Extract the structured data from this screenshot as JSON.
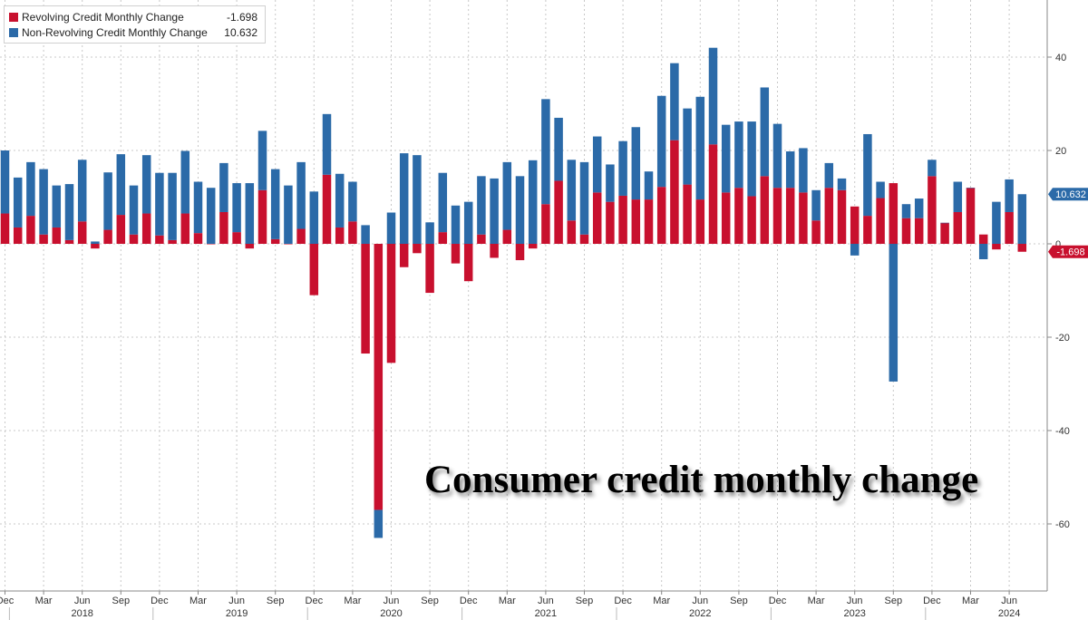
{
  "chart_data": {
    "type": "bar",
    "stacked": true,
    "title": "Consumer credit monthly change",
    "series": [
      {
        "name": "Revolving Credit Monthly Change",
        "last_value": "-1.698",
        "color": "#c8102e",
        "values": [
          6.5,
          3.5,
          6,
          2,
          3.5,
          0.8,
          4.8,
          -1,
          3,
          6.2,
          2,
          6.5,
          1.8,
          0.8,
          6.5,
          2.3,
          0,
          6.8,
          2.5,
          -1,
          11.5,
          1,
          0,
          3.2,
          -11,
          14.8,
          3.5,
          4.8,
          -23.5,
          -57,
          -25.5,
          -5,
          -2,
          -10.5,
          2.5,
          -4.2,
          -8,
          2,
          -3,
          3,
          -3.5,
          -1,
          8.5,
          13.5,
          5,
          2,
          11,
          9,
          10.3,
          9.5,
          9.5,
          12.2,
          22.2,
          12.7,
          9.5,
          21.3,
          11,
          12,
          10.2,
          14.5,
          12,
          12,
          11,
          5,
          12,
          11.5,
          8,
          6,
          9.8,
          13,
          5.5,
          5.5,
          14.5,
          4.5,
          6.8,
          12,
          2,
          -1.2,
          6.8,
          -1.698
        ]
      },
      {
        "name": "Non-Revolving Credit Monthly Change",
        "last_value": "10.632",
        "color": "#2b6aa8",
        "values": [
          13.5,
          10.7,
          11.5,
          14,
          9,
          12,
          13.2,
          0.5,
          12.3,
          13,
          10.5,
          12.5,
          13.4,
          14.4,
          13.4,
          11,
          12,
          10.5,
          10.5,
          13,
          12.7,
          15,
          12.5,
          14.3,
          11.2,
          13,
          11.5,
          8.5,
          4,
          -6,
          6.7,
          19.4,
          19,
          4.6,
          12.7,
          8.2,
          9,
          12.5,
          14,
          14.5,
          14.5,
          17.9,
          22.5,
          13.5,
          13,
          15.5,
          12,
          8,
          11.7,
          15.5,
          6,
          19.5,
          16.5,
          16.3,
          22,
          20.7,
          14.5,
          14.2,
          16,
          19,
          13.7,
          7.8,
          9.5,
          6.5,
          5.3,
          2.5,
          -2.5,
          17.5,
          3.5,
          -29.5,
          3,
          4.2,
          3.5,
          0,
          6.5,
          0,
          -3.3,
          9,
          7,
          10.632
        ]
      }
    ],
    "x_tick_labels": [
      "Dec",
      "Mar",
      "Jun",
      "Sep",
      "Dec",
      "Mar",
      "Jun",
      "Sep",
      "Dec",
      "Mar",
      "Jun",
      "Sep",
      "Dec",
      "Mar",
      "Jun",
      "Sep",
      "Dec",
      "Mar",
      "Jun",
      "Sep",
      "Dec",
      "Mar",
      "Jun",
      "Sep",
      "Dec",
      "Mar",
      "Jun"
    ],
    "year_labels": [
      "2018",
      "2019",
      "2020",
      "2021",
      "2022",
      "2023",
      "2024"
    ],
    "y_ticks": [
      40,
      20,
      0,
      -20,
      -40,
      -60
    ],
    "y_tick_labels": [
      "40",
      "20",
      "0",
      "-20",
      "-40",
      "-60"
    ],
    "ylim": [
      -73,
      52
    ],
    "grid": true,
    "legend_position": "top-left",
    "y_axis_side": "right",
    "last_value_tags": [
      "10.632",
      "-1.698"
    ]
  }
}
